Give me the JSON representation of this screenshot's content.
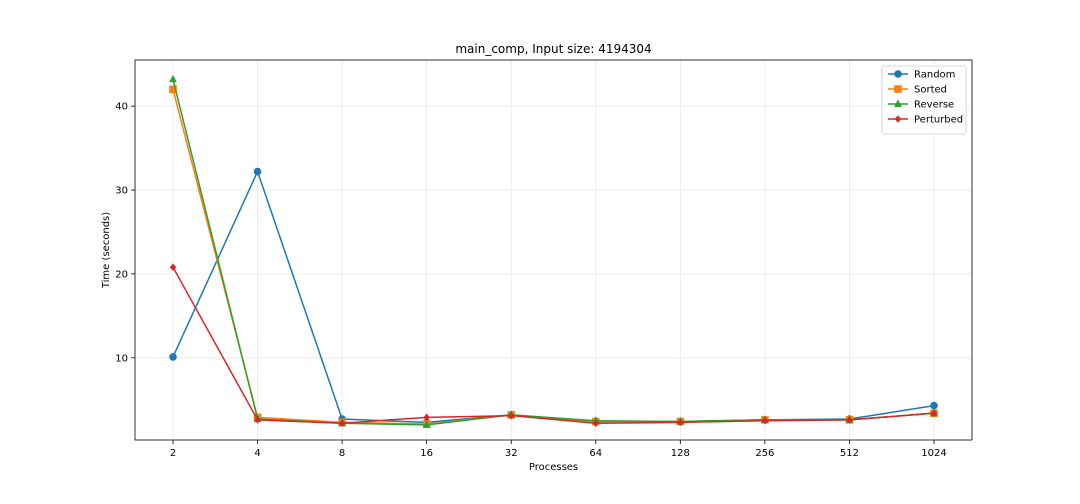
{
  "chart_data": {
    "type": "line",
    "title": "main_comp, Input size: 4194304",
    "xlabel": "Processes",
    "ylabel": "Time (seconds)",
    "categories": [
      "2",
      "4",
      "8",
      "16",
      "32",
      "64",
      "128",
      "256",
      "512",
      "1024"
    ],
    "ylim": [
      0.2,
      45.5
    ],
    "yticks": [
      10,
      20,
      30,
      40
    ],
    "grid": true,
    "legend_position": "top-right",
    "series": [
      {
        "name": "Random",
        "color": "#1f77b4",
        "marker": "circle",
        "values": [
          10.1,
          32.2,
          2.7,
          2.3,
          3.2,
          2.4,
          2.4,
          2.6,
          2.7,
          4.3
        ]
      },
      {
        "name": "Sorted",
        "color": "#ff7f0e",
        "marker": "square",
        "values": [
          42.0,
          2.9,
          2.3,
          2.1,
          3.2,
          2.4,
          2.4,
          2.6,
          2.6,
          3.4
        ]
      },
      {
        "name": "Reverse",
        "color": "#2ca02c",
        "marker": "triangle",
        "values": [
          43.2,
          2.7,
          2.2,
          2.0,
          3.2,
          2.5,
          2.4,
          2.6,
          2.6,
          3.4
        ]
      },
      {
        "name": "Perturbed",
        "color": "#d62728",
        "marker": "diamond",
        "values": [
          20.8,
          2.6,
          2.2,
          2.9,
          3.1,
          2.2,
          2.3,
          2.5,
          2.6,
          3.4
        ]
      }
    ]
  }
}
